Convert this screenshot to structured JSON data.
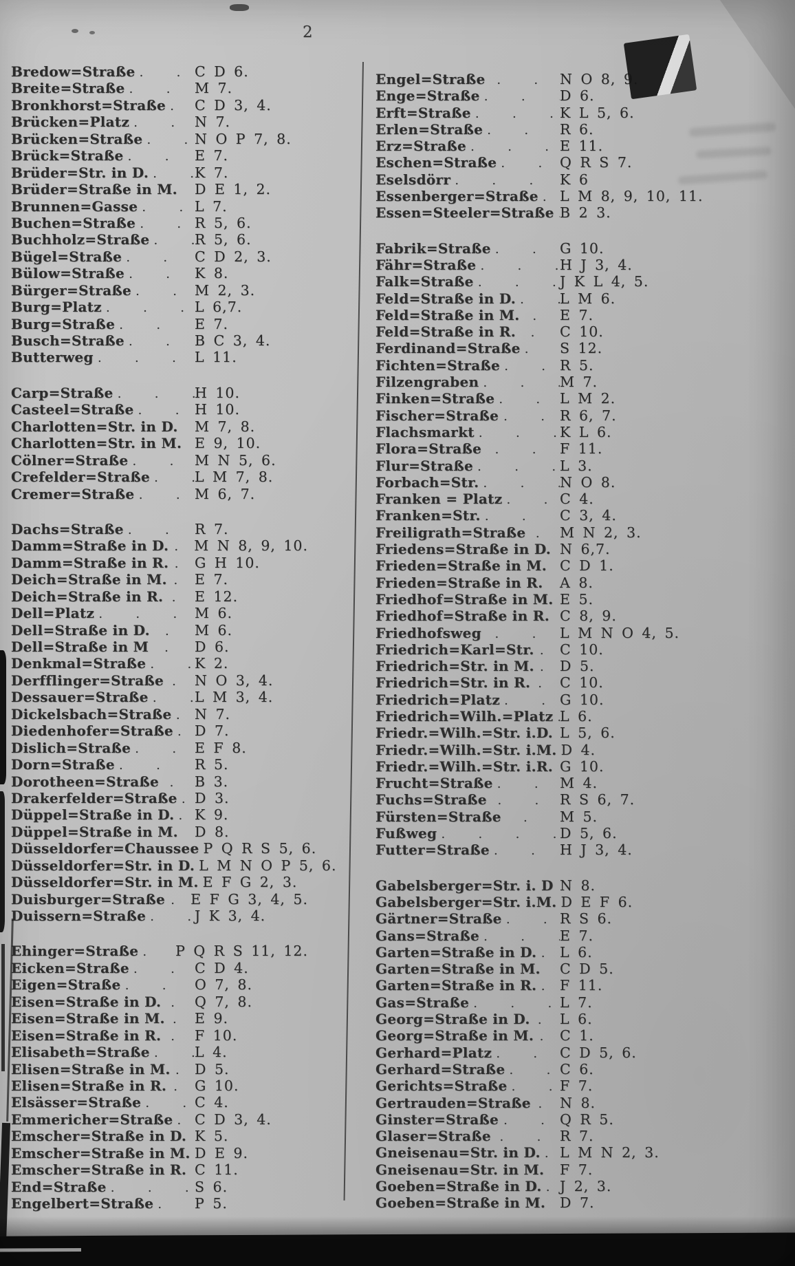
{
  "page": {
    "number": "2"
  },
  "colors": {
    "paper": "#bababa",
    "ink": "#2d2d2d",
    "scan_black": "#0d0d0d"
  },
  "columns": [
    {
      "groups": [
        {
          "entries": [
            {
              "name": "Bredow=Straße",
              "dots": ". . .",
              "ref": "C D 6."
            },
            {
              "name": "Breite=Straße",
              "dots": ". . .",
              "ref": "M 7."
            },
            {
              "name": "Bronkhorst=Straße",
              "dots": ". .",
              "ref": "C D 3, 4."
            },
            {
              "name": "Brücken=Platz",
              "dots": ". . .",
              "ref": "N 7."
            },
            {
              "name": "Brücken=Straße",
              "dots": ". .",
              "ref": "N O P 7, 8."
            },
            {
              "name": "Brück=Straße",
              "dots": ". . .",
              "ref": "E 7."
            },
            {
              "name": "Brüder=Str. in D.",
              "dots": ". .",
              "ref": "K 7."
            },
            {
              "name": "Brüder=Straße in M.",
              "dots": "",
              "ref": "D E 1, 2."
            },
            {
              "name": "Brunnen=Gasse",
              "dots": ". . .",
              "ref": "L 7."
            },
            {
              "name": "Buchen=Straße",
              "dots": ". . .",
              "ref": "R 5, 6."
            },
            {
              "name": "Buchholz=Straße",
              "dots": ". .",
              "ref": "R 5, 6."
            },
            {
              "name": "Bügel=Straße",
              "dots": ". . .",
              "ref": "C D 2, 3."
            },
            {
              "name": "Bülow=Straße",
              "dots": ". . .",
              "ref": "K 8."
            },
            {
              "name": "Bürger=Straße",
              "dots": ". . .",
              "ref": "M 2, 3."
            },
            {
              "name": "Burg=Platz",
              "dots": ". . . .",
              "ref": "L 6,7."
            },
            {
              "name": "Burg=Straße",
              "dots": ". . .",
              "ref": "E 7."
            },
            {
              "name": "Busch=Straße",
              "dots": ". . .",
              "ref": "B C 3, 4."
            },
            {
              "name": "Butterweg",
              "dots": ". . . .",
              "ref": "L 11."
            }
          ]
        },
        {
          "entries": [
            {
              "name": "Carp=Straße",
              "dots": ". . . .",
              "ref": "H 10."
            },
            {
              "name": "Casteel=Straße",
              "dots": ". . .",
              "ref": "H 10."
            },
            {
              "name": "Charlotten=Str. in D.",
              "dots": "",
              "ref": "M 7, 8."
            },
            {
              "name": "Charlotten=Str. in M.",
              "dots": "",
              "ref": "E 9, 10."
            },
            {
              "name": "Cölner=Straße",
              "dots": ". . .",
              "ref": "M N 5, 6."
            },
            {
              "name": "Crefelder=Straße",
              "dots": ". .",
              "ref": "L M 7, 8."
            },
            {
              "name": "Cremer=Straße",
              "dots": ". .",
              "ref": "M 6, 7."
            }
          ]
        },
        {
          "entries": [
            {
              "name": "Dachs=Straße",
              "dots": ". . .",
              "ref": "R 7."
            },
            {
              "name": "Damm=Straße in D.",
              "dots": ".",
              "ref": "M N 8, 9, 10."
            },
            {
              "name": "Damm=Straße in R.",
              "dots": ".",
              "ref": "G H 10."
            },
            {
              "name": "Deich=Straße in M.",
              "dots": ".",
              "ref": "E 7."
            },
            {
              "name": "Deich=Straße in R.",
              "dots": ".",
              "ref": "E 12."
            },
            {
              "name": "Dell=Platz",
              "dots": ". . . .",
              "ref": "M 6."
            },
            {
              "name": "Dell=Straße in D.",
              "dots": ".",
              "ref": "M 6."
            },
            {
              "name": "Dell=Straße in M",
              "dots": ".",
              "ref": "D 6."
            },
            {
              "name": "Denkmal=Straße",
              "dots": ". .",
              "ref": "K 2."
            },
            {
              "name": "Derfflinger=Straße",
              "dots": ".",
              "ref": "N O 3, 4."
            },
            {
              "name": "Dessauer=Straße",
              "dots": ". .",
              "ref": "L M 3, 4."
            },
            {
              "name": "Dickelsbach=Straße",
              "dots": ".",
              "ref": "N 7."
            },
            {
              "name": "Diedenhofer=Straße",
              "dots": ".",
              "ref": "D 7."
            },
            {
              "name": "Dislich=Straße",
              "dots": ". . .",
              "ref": "E F 8."
            },
            {
              "name": "Dorn=Straße",
              "dots": ". . .",
              "ref": "R 5."
            },
            {
              "name": "Dorotheen=Straße",
              "dots": ".",
              "ref": "B 3."
            },
            {
              "name": "Drakerfelder=Straße",
              "dots": ".",
              "ref": "D 3."
            },
            {
              "name": "Düppel=Straße in D.",
              "dots": ".",
              "ref": "K 9."
            },
            {
              "name": "Düppel=Straße in M.",
              "dots": "",
              "ref": "D 8."
            },
            {
              "name": "Düsseldorfer=Chaussee",
              "dots": ".",
              "ref": "P Q R S 5, 6."
            },
            {
              "name": "Düsseldorfer=Str. in D.",
              "dots": "",
              "ref": "L M N O P 5, 6."
            },
            {
              "name": "Düsseldorfer=Str. in M.",
              "dots": "",
              "ref": "E F G 2, 3."
            },
            {
              "name": "Duisburger=Straße",
              "dots": ".",
              "ref": "E F G 3, 4, 5."
            },
            {
              "name": "Duissern=Straße",
              "dots": ". .",
              "ref": "J K 3, 4."
            }
          ]
        },
        {
          "entries": [
            {
              "name": "Ehinger=Straße",
              "dots": ". .",
              "ref": "P Q R S 11, 12."
            },
            {
              "name": "Eicken=Straße",
              "dots": ". . .",
              "ref": "C D 4."
            },
            {
              "name": "Eigen=Straße",
              "dots": ". . .",
              "ref": "O 7, 8."
            },
            {
              "name": "Eisen=Straße in D.",
              "dots": ".",
              "ref": "Q 7, 8."
            },
            {
              "name": "Eisen=Straße in M.",
              "dots": ".",
              "ref": "E 9."
            },
            {
              "name": "Eisen=Straße in R.",
              "dots": ".",
              "ref": "F 10."
            },
            {
              "name": "Elisabeth=Straße",
              "dots": ". .",
              "ref": "L 4."
            },
            {
              "name": "Elisen=Straße in M.",
              "dots": ".",
              "ref": "D 5."
            },
            {
              "name": "Elisen=Straße in R.",
              "dots": ".",
              "ref": "G 10."
            },
            {
              "name": "Elsässer=Straße",
              "dots": ". . .",
              "ref": "C 4."
            },
            {
              "name": "Emmericher=Straße",
              "dots": ".",
              "ref": "C D 3, 4."
            },
            {
              "name": "Emscher=Straße in D.",
              "dots": "",
              "ref": "K 5."
            },
            {
              "name": "Emscher=Straße in M.",
              "dots": "",
              "ref": "D E 9."
            },
            {
              "name": "Emscher=Straße in R.",
              "dots": "",
              "ref": "C 11."
            },
            {
              "name": "End=Straße",
              "dots": ". . . .",
              "ref": "S 6."
            },
            {
              "name": "Engelbert=Straße",
              "dots": ". .",
              "ref": "P 5."
            }
          ]
        }
      ]
    },
    {
      "groups": [
        {
          "entries": [
            {
              "name": "Engel=Straße",
              "dots": ". .",
              "ref": "N O 8, 9."
            },
            {
              "name": "Enge=Straße",
              "dots": ". . .",
              "ref": "D 6."
            },
            {
              "name": "Erft=Straße",
              "dots": ". . . .",
              "ref": "K L 5, 6."
            },
            {
              "name": "Erlen=Straße",
              "dots": ". . .",
              "ref": "R 6."
            },
            {
              "name": "Erz=Straße",
              "dots": ". . .",
              "ref": "E 11."
            },
            {
              "name": "Eschen=Straße",
              "dots": ". . .",
              "ref": "Q R S 7."
            },
            {
              "name": "Eselsdörr",
              "dots": ". . . . .",
              "ref": "K 6"
            },
            {
              "name": "Essenberger=Straße",
              "dots": ".",
              "ref": "L M 8, 9, 10, 11."
            },
            {
              "name": "Essen=Steeler=Straße",
              "dots": ".",
              "ref": "B 2 3."
            }
          ]
        },
        {
          "entries": [
            {
              "name": "Fabrik=Straße",
              "dots": ". . .",
              "ref": "G 10."
            },
            {
              "name": "Fähr=Straße",
              "dots": ". . .",
              "ref": "H J 3, 4."
            },
            {
              "name": "Falk=Straße",
              "dots": ". . . .",
              "ref": "J K L 4, 5."
            },
            {
              "name": "Feld=Straße in D.",
              "dots": ". .",
              "ref": "L M 6."
            },
            {
              "name": "Feld=Straße in M.",
              "dots": ".",
              "ref": "E 7."
            },
            {
              "name": "Feld=Straße in R.",
              "dots": ".",
              "ref": "C 10."
            },
            {
              "name": "Ferdinand=Straße",
              "dots": ". .",
              "ref": "S 12."
            },
            {
              "name": "Fichten=Straße",
              "dots": ". .",
              "ref": "R 5."
            },
            {
              "name": "Filzengraben",
              "dots": ". . .",
              "ref": "M 7."
            },
            {
              "name": "Finken=Straße",
              "dots": ". . .",
              "ref": "L M 2."
            },
            {
              "name": "Fischer=Straße",
              "dots": ". .",
              "ref": "R 6, 7."
            },
            {
              "name": "Flachsmarkt",
              "dots": ". . . .",
              "ref": "K L 6."
            },
            {
              "name": "Flora=Straße",
              "dots": ". .",
              "ref": "F 11."
            },
            {
              "name": "Flur=Straße",
              "dots": ". . .",
              "ref": "L 3."
            },
            {
              "name": "Forbach=Str.",
              "dots": ". . .",
              "ref": "N O 8."
            },
            {
              "name": "Franken = Platz",
              "dots": ". . .",
              "ref": "C 4."
            },
            {
              "name": "Franken=Str.",
              "dots": ". . .",
              "ref": "C 3, 4."
            },
            {
              "name": "Freiligrath=Straße",
              "dots": ".",
              "ref": "M N 2, 3."
            },
            {
              "name": "Friedens=Straße in D.",
              "dots": "",
              "ref": "N 6,7."
            },
            {
              "name": "Frieden=Straße in M.",
              "dots": "",
              "ref": "C D 1."
            },
            {
              "name": "Frieden=Straße in R.",
              "dots": "",
              "ref": "A 8."
            },
            {
              "name": "Friedhof=Straße in M.",
              "dots": "",
              "ref": "E 5."
            },
            {
              "name": "Friedhof=Straße in R.",
              "dots": "",
              "ref": "C 8, 9."
            },
            {
              "name": "Friedhofsweg",
              "dots": ". .",
              "ref": "L M N O 4, 5."
            },
            {
              "name": "Friedrich=Karl=Str.",
              "dots": ".",
              "ref": "C 10."
            },
            {
              "name": "Friedrich=Str. in M.",
              "dots": ".",
              "ref": "D 5."
            },
            {
              "name": "Friedrich=Str. in R.",
              "dots": ".",
              "ref": "C 10."
            },
            {
              "name": "Friedrich=Platz",
              "dots": ". .",
              "ref": "G 10."
            },
            {
              "name": "Friedrich=Wilh.=Platz",
              "dots": ".",
              "ref": "L 6."
            },
            {
              "name": "Friedr.=Wilh.=Str. i.D.",
              "dots": "",
              "ref": "L 5, 6."
            },
            {
              "name": "Friedr.=Wilh.=Str. i.M.",
              "dots": "",
              "ref": "D 4."
            },
            {
              "name": "Friedr.=Wilh.=Str. i.R.",
              "dots": "",
              "ref": "G 10."
            },
            {
              "name": "Frucht=Straße",
              "dots": ". . .",
              "ref": "M 4."
            },
            {
              "name": "Fuchs=Straße",
              "dots": ". .",
              "ref": "R S 6, 7."
            },
            {
              "name": "Fürsten=Straße",
              "dots": ".",
              "ref": "M 5."
            },
            {
              "name": "Fußweg",
              "dots": ". . . . .",
              "ref": "D 5, 6."
            },
            {
              "name": "Futter=Straße",
              "dots": ". . .",
              "ref": "H J 3, 4."
            }
          ]
        },
        {
          "entries": [
            {
              "name": "Gabelsberger=Str. i. D",
              "dots": "",
              "ref": "N 8."
            },
            {
              "name": "Gabelsberger=Str. i.M.",
              "dots": "",
              "ref": "D E F 6."
            },
            {
              "name": "Gärtner=Straße",
              "dots": ". .",
              "ref": "R S 6."
            },
            {
              "name": "Gans=Straße",
              "dots": ". . .",
              "ref": "E 7."
            },
            {
              "name": "Garten=Straße in D.",
              "dots": ".",
              "ref": "L 6."
            },
            {
              "name": "Garten=Straße in M.",
              "dots": "",
              "ref": "C D 5."
            },
            {
              "name": "Garten=Straße in R.",
              "dots": ".",
              "ref": "F 11."
            },
            {
              "name": "Gas=Straße",
              "dots": ". . .",
              "ref": "L 7."
            },
            {
              "name": "Georg=Straße in D.",
              "dots": ".",
              "ref": "L 6."
            },
            {
              "name": "Georg=Straße in M.",
              "dots": ".",
              "ref": "C 1."
            },
            {
              "name": "Gerhard=Platz",
              "dots": ". . .",
              "ref": "C D 5, 6."
            },
            {
              "name": "Gerhard=Straße",
              "dots": ". .",
              "ref": "C 6."
            },
            {
              "name": "Gerichts=Straße",
              "dots": ". .",
              "ref": "F 7."
            },
            {
              "name": "Gertrauden=Straße",
              "dots": ".",
              "ref": "N 8."
            },
            {
              "name": "Ginster=Straße",
              "dots": ". .",
              "ref": "Q R 5."
            },
            {
              "name": "Glaser=Straße",
              "dots": ". .",
              "ref": "R 7."
            },
            {
              "name": "Gneisenau=Str. in D.",
              "dots": ".",
              "ref": "L M N 2, 3."
            },
            {
              "name": "Gneisenau=Str. in M.",
              "dots": "",
              "ref": "F 7."
            },
            {
              "name": "Goeben=Straße in D.",
              "dots": ".",
              "ref": "J 2, 3."
            },
            {
              "name": "Goeben=Straße in M.",
              "dots": "",
              "ref": "D 7."
            }
          ]
        }
      ]
    }
  ]
}
